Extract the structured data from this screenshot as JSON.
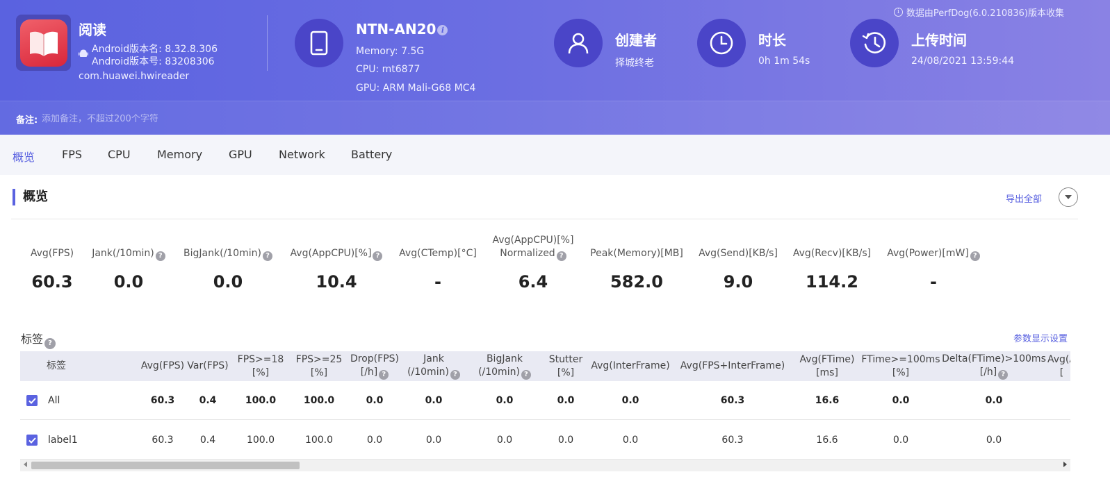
{
  "header": {
    "app": {
      "name": "阅读",
      "version_name": "Android版本名: 8.32.8.306",
      "version_code": "Android版本号: 83208306",
      "package": "com.huawei.hwireader"
    },
    "device": {
      "name": "NTN-AN20",
      "memory": "Memory: 7.5G",
      "cpu": "CPU: mt6877",
      "gpu": "GPU: ARM Mali-G68 MC4"
    },
    "creator": {
      "title": "创建者",
      "value": "择城终老"
    },
    "duration": {
      "title": "时长",
      "value": "0h 1m 54s"
    },
    "upload": {
      "title": "上传时间",
      "value": "24/08/2021 13:59:44"
    },
    "source_note": "数据由PerfDog(6.0.210836)版本收集",
    "notes": {
      "label": "备注:",
      "placeholder": "添加备注，不超过200个字符",
      "value": ""
    }
  },
  "tabs": [
    "概览",
    "FPS",
    "CPU",
    "Memory",
    "GPU",
    "Network",
    "Battery"
  ],
  "overview": {
    "title": "概览",
    "export_label": "导出全部",
    "stats": [
      {
        "label": "Avg(FPS)",
        "value": "60.3"
      },
      {
        "label": "Jank(/10min)",
        "value": "0.0"
      },
      {
        "label": "BigJank(/10min)",
        "value": "0.0"
      },
      {
        "label": "Avg(AppCPU)[%]",
        "value": "10.4"
      },
      {
        "label": "Avg(CTemp)[°C]",
        "value": "-"
      },
      {
        "label": "Avg(AppCPU)[%]",
        "label2": "Normalized",
        "value": "6.4"
      },
      {
        "label": "Peak(Memory)[MB]",
        "value": "582.0"
      },
      {
        "label": "Avg(Send)[KB/s]",
        "value": "9.0"
      },
      {
        "label": "Avg(Recv)[KB/s]",
        "value": "114.2"
      },
      {
        "label": "Avg(Power)[mW]",
        "value": "-"
      }
    ]
  },
  "tags": {
    "title": "标签",
    "settings_label": "参数显示设置",
    "columns": [
      {
        "l1": "标签"
      },
      {
        "l1": "Avg(FPS)"
      },
      {
        "l1": "Var(FPS)"
      },
      {
        "l1": "FPS>=18",
        "l2": "[%]"
      },
      {
        "l1": "FPS>=25",
        "l2": "[%]"
      },
      {
        "l1": "Drop(FPS)",
        "l2": "[/h]"
      },
      {
        "l1": "Jank",
        "l2": "(/10min)"
      },
      {
        "l1": "BigJank",
        "l2": "(/10min)"
      },
      {
        "l1": "Stutter",
        "l2": "[%]"
      },
      {
        "l1": "Avg(InterFrame)"
      },
      {
        "l1": "Avg(FPS+InterFrame)"
      },
      {
        "l1": "Avg(FTime)",
        "l2": "[ms]"
      },
      {
        "l1": "FTime>=100ms",
        "l2": "[%]"
      },
      {
        "l1": "Delta(FTime)>100ms",
        "l2": "[/h]"
      },
      {
        "l1": "Avg(A",
        "l2": "["
      }
    ],
    "rows": [
      {
        "label": "All",
        "checked": true,
        "values": [
          "60.3",
          "0.4",
          "100.0",
          "100.0",
          "0.0",
          "0.0",
          "0.0",
          "0.0",
          "0.0",
          "60.3",
          "16.6",
          "0.0",
          "0.0"
        ]
      },
      {
        "label": "label1",
        "checked": true,
        "values": [
          "60.3",
          "0.4",
          "100.0",
          "100.0",
          "0.0",
          "0.0",
          "0.0",
          "0.0",
          "0.0",
          "60.3",
          "16.6",
          "0.0",
          "0.0"
        ]
      }
    ]
  }
}
